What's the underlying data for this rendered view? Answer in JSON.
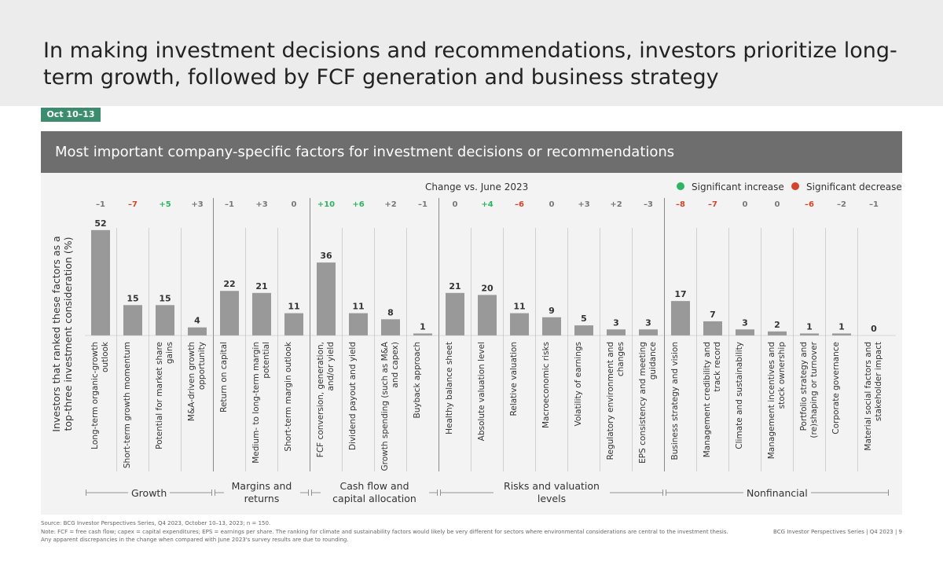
{
  "header": {
    "title": "In making investment decisions and recommendations, investors prioritize long-term growth, followed by FCF generation and business strategy",
    "date_tag": "Oct 10–13"
  },
  "chart_data": {
    "type": "bar",
    "title": "Most important company-specific factors for investment decisions or recommendations",
    "y_label": "Investors that ranked these factors as a top-three investment consideration (%)",
    "color": "#999999",
    "change_title": "Change vs. June 2023",
    "legend": [
      {
        "label": "Significant increase",
        "color": "#2eb563"
      },
      {
        "label": "Significant decrease",
        "color": "#d1452b"
      }
    ],
    "groups": [
      {
        "name": "Growth",
        "categories": [
          "Long-term organic-growth outlook",
          "Short-term growth momentum",
          "Potential for market share gains",
          "M&A-driven growth opportunity"
        ],
        "values": [
          52,
          15,
          15,
          4
        ],
        "changes": [
          "–1",
          "–7",
          "+5",
          "+3"
        ],
        "change_colors": [
          "#777777",
          "#d1452b",
          "#2eb563",
          "#777777"
        ]
      },
      {
        "name": "Margins and returns",
        "categories": [
          "Return on capital",
          "Medium- to long-term margin potential",
          "Short-term margin outlook"
        ],
        "values": [
          22,
          21,
          11
        ],
        "changes": [
          "–1",
          "+3",
          "0"
        ],
        "change_colors": [
          "#777777",
          "#777777",
          "#777777"
        ]
      },
      {
        "name": "Cash flow and capital allocation",
        "categories": [
          "FCF conversion, generation, and/or yield",
          "Dividend payout and yield",
          "Growth spending (such as M&A and capex)",
          "Buyback approach"
        ],
        "values": [
          36,
          11,
          8,
          1
        ],
        "changes": [
          "+10",
          "+6",
          "+2",
          "–1"
        ],
        "change_colors": [
          "#2eb563",
          "#2eb563",
          "#777777",
          "#777777"
        ]
      },
      {
        "name": "Risks and valuation levels",
        "categories": [
          "Healthy balance sheet",
          "Absolute valuation level",
          "Relative valuation",
          "Macroeconomic risks",
          "Volatility of earnings",
          "Regulatory environment and changes",
          "EPS consistency and meeting guidance"
        ],
        "values": [
          21,
          20,
          11,
          9,
          5,
          3,
          3
        ],
        "changes": [
          "0",
          "+4",
          "–6",
          "0",
          "+3",
          "+2",
          "–3"
        ],
        "change_colors": [
          "#777777",
          "#2eb563",
          "#d1452b",
          "#777777",
          "#777777",
          "#777777",
          "#777777"
        ]
      },
      {
        "name": "Nonfinancial",
        "categories": [
          "Business strategy and vision",
          "Management credibility and track record",
          "Climate and sustainability",
          "Management incentives and stock ownership",
          "Portfolio strategy and (re)shaping or turnover",
          "Corporate governance",
          "Material social factors and stakeholder impact"
        ],
        "values": [
          17,
          7,
          3,
          2,
          1,
          1,
          0
        ],
        "changes": [
          "–8",
          "–7",
          "0",
          "0",
          "–6",
          "–2",
          "–1"
        ],
        "change_colors": [
          "#d1452b",
          "#d1452b",
          "#777777",
          "#777777",
          "#d1452b",
          "#777777",
          "#777777"
        ]
      }
    ]
  },
  "footer": {
    "source": "Source: BCG Investor Perspectives Series, Q4 2023, October 10–13, 2023; n = 150.",
    "note": "Note: FCF = free cash flow; capex = capital expenditures; EPS = earnings per share. The ranking for climate and sustainability factors would likely be very different for sectors where environmental considerations are central to the investment thesis.",
    "note2": "Any apparent discrepancies in the change when compared with June 2023's survey results are due to rounding.",
    "page": "BCG Investor Perspectives Series | Q4 2023 | 9"
  }
}
